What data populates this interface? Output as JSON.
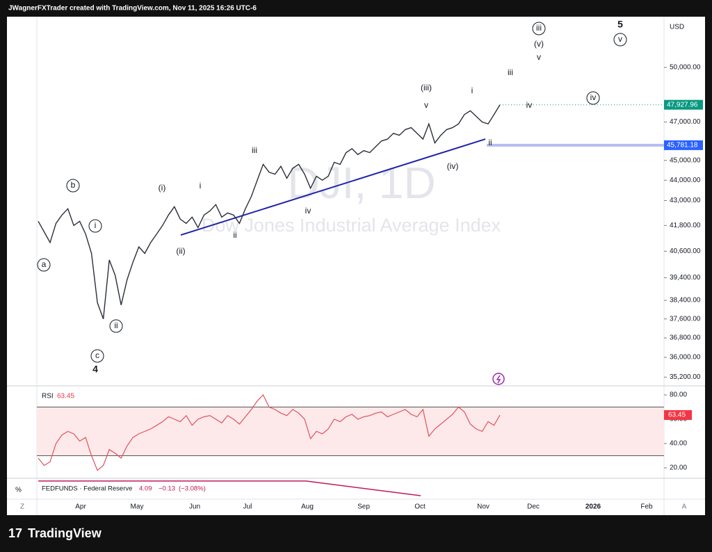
{
  "chart_data": {
    "type": "line",
    "title": "JWagnerFXTrader created with TradingView.com, Nov 11, 2025 16:26 UTC-6",
    "watermark": "DJI, 1D",
    "subtitle": "Dow Jones Industrial Average Index",
    "currency": "USD",
    "log_scale": true,
    "color": "#2a2e39",
    "values": [
      42000,
      41500,
      41000,
      41900,
      42300,
      42600,
      41800,
      42000,
      41400,
      40500,
      38300,
      37600,
      40200,
      39500,
      38200,
      39300,
      40100,
      40800,
      40500,
      41000,
      41400,
      41800,
      42300,
      42700,
      42100,
      41900,
      42200,
      41700,
      42300,
      42500,
      42800,
      42200,
      42400,
      42300,
      41900,
      42600,
      43200,
      44000,
      44800,
      44400,
      44300,
      44700,
      44100,
      44600,
      44800,
      44300,
      43600,
      44200,
      44000,
      44200,
      44900,
      44800,
      45400,
      45600,
      45300,
      45500,
      45400,
      45700,
      46000,
      46100,
      46400,
      46300,
      46600,
      46700,
      46400,
      46100,
      46900,
      45900,
      46300,
      46600,
      46700,
      46900,
      47400,
      47600,
      47300,
      47000,
      46900,
      47400,
      47928
    ],
    "ylim": [
      34855,
      52958
    ],
    "yticks": [
      {
        "value": 50000,
        "label": "50,000.00"
      },
      {
        "value": 47000,
        "label": "47,000.00"
      },
      {
        "value": 45000,
        "label": "45,000.00"
      },
      {
        "value": 44000,
        "label": "44,000.00"
      },
      {
        "value": 43000,
        "label": "43,000.00"
      },
      {
        "value": 41800,
        "label": "41,800.00"
      },
      {
        "value": 40600,
        "label": "40,600.00"
      },
      {
        "value": 39400,
        "label": "39,400.00"
      },
      {
        "value": 38400,
        "label": "38,400.00"
      },
      {
        "value": 37600,
        "label": "37,600.00"
      },
      {
        "value": 36800,
        "label": "36,800.00"
      },
      {
        "value": 36000,
        "label": "36,000.00"
      },
      {
        "value": 35200,
        "label": "35,200.00"
      }
    ],
    "last_price": {
      "value": 47927.96,
      "label": "47,927.96"
    },
    "level": {
      "value": 45781.18,
      "label": "45,781.18"
    },
    "trendline": [
      41350,
      46100
    ],
    "xticks": [
      "Apr",
      "May",
      "Jun",
      "Jul",
      "Aug",
      "Sep",
      "Oct",
      "Nov",
      "Dec",
      "2026",
      "Feb"
    ],
    "annotations": [
      {
        "text": "a",
        "circled": true
      },
      {
        "text": "b",
        "circled": true
      },
      {
        "text": "c",
        "circled": true
      },
      {
        "text": "4",
        "circled": false
      },
      {
        "text": "i",
        "circled": true
      },
      {
        "text": "ii",
        "circled": true
      },
      {
        "text": "(i)",
        "circled": false
      },
      {
        "text": "i",
        "circled": false
      },
      {
        "text": "(ii)",
        "circled": false
      },
      {
        "text": "ii",
        "circled": false
      },
      {
        "text": "iii",
        "circled": false
      },
      {
        "text": "iv",
        "circled": false
      },
      {
        "text": "(iii)",
        "circled": false
      },
      {
        "text": "v",
        "circled": false
      },
      {
        "text": "(iv)",
        "circled": false
      },
      {
        "text": "i",
        "circled": false
      },
      {
        "text": "ii",
        "circled": false
      },
      {
        "text": "iii",
        "circled": false
      },
      {
        "text": "iv",
        "circled": false
      },
      {
        "text": "v",
        "circled": false
      },
      {
        "text": "(v)",
        "circled": false
      },
      {
        "text": "iii",
        "circled": true
      },
      {
        "text": "iv",
        "circled": true
      },
      {
        "text": "5",
        "circled": false
      },
      {
        "text": "v",
        "circled": true
      }
    ],
    "rsi": {
      "name": "RSI",
      "color": "#e0525e",
      "values": [
        28,
        22,
        25,
        40,
        47,
        50,
        48,
        42,
        45,
        30,
        18,
        22,
        35,
        32,
        28,
        38,
        45,
        48,
        50,
        52,
        55,
        58,
        62,
        60,
        58,
        63,
        55,
        60,
        62,
        63,
        60,
        57,
        63,
        60,
        56,
        62,
        68,
        75,
        80,
        70,
        68,
        65,
        63,
        68,
        65,
        60,
        44,
        50,
        48,
        52,
        60,
        58,
        62,
        64,
        60,
        62,
        63,
        65,
        66,
        62,
        64,
        66,
        68,
        64,
        62,
        68,
        46,
        52,
        56,
        60,
        64,
        70,
        66,
        56,
        52,
        50,
        58,
        55,
        63.45
      ],
      "ylim": [
        11.4,
        84.6
      ],
      "bands": [
        30,
        70
      ],
      "yticks": [
        {
          "value": 80,
          "label": "80.00"
        },
        {
          "value": 60,
          "label": "60.00"
        },
        {
          "value": 40,
          "label": "40.00"
        },
        {
          "value": 20,
          "label": "20.00"
        }
      ]
    },
    "fedfunds": {
      "name": "FEDFUNDS · Federal Reserve",
      "value": 4.09,
      "change": {
        "value": -0.13,
        "label": "−0.13"
      },
      "change_pct": {
        "value": -3.08,
        "label": "(−3.08%)"
      },
      "unit": "%",
      "color": "#c2185b",
      "values": [
        4.33,
        4.33,
        4.09
      ]
    },
    "corner_left": "Z",
    "corner_right": "A",
    "brand": "TradingView"
  }
}
